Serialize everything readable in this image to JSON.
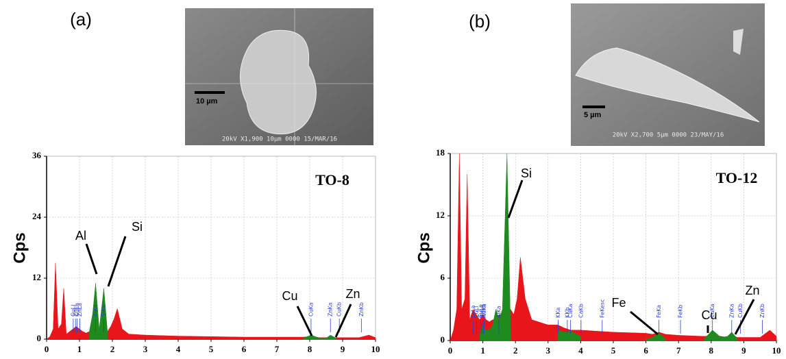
{
  "chart_data": [
    {
      "type": "area",
      "panel": "(a)",
      "title": "TO-8",
      "y_label": "Cps",
      "image": {
        "scale_bar": "10 µm",
        "info": "20kV  X1,900  10µm 0000 15/MAR/16"
      },
      "xlim": [
        0,
        10
      ],
      "ylim": [
        0,
        36
      ],
      "xticks": [
        0,
        1,
        2,
        3,
        4,
        5,
        6,
        7,
        8,
        9,
        10
      ],
      "yticks": [
        0,
        12,
        24,
        36
      ],
      "grid": true,
      "x": [
        0,
        0.1,
        0.2,
        0.27,
        0.35,
        0.45,
        0.52,
        0.6,
        0.7,
        0.8,
        0.9,
        1.0,
        1.1,
        1.2,
        1.3,
        1.4,
        1.49,
        1.6,
        1.74,
        1.85,
        1.95,
        2.05,
        2.15,
        2.3,
        2.5,
        3.0,
        4.0,
        5.0,
        6.0,
        7.0,
        7.8,
        8.04,
        8.3,
        8.5,
        8.63,
        8.8,
        9.0,
        9.5,
        9.8,
        10.0
      ],
      "series": [
        {
          "color": "#e8161b",
          "values": [
            0,
            0.5,
            2,
            15,
            2,
            3,
            10,
            1,
            1.5,
            2,
            2.5,
            2,
            1.5,
            1.2,
            1.5,
            3,
            3,
            2,
            2,
            1.5,
            2.5,
            4,
            6,
            2,
            1,
            0.8,
            0.6,
            0.5,
            0.4,
            0.4,
            0.4,
            0.5,
            0.3,
            0.3,
            0.4,
            0.3,
            0.3,
            0.3,
            0.8,
            0.3
          ]
        },
        {
          "color": "#1f8a1f",
          "values": [
            null,
            null,
            null,
            null,
            null,
            null,
            null,
            null,
            null,
            null,
            null,
            null,
            null,
            null,
            1.5,
            5,
            11,
            2,
            10,
            1.5,
            null,
            null,
            null,
            null,
            null,
            null,
            null,
            null,
            null,
            null,
            0.2,
            0.8,
            0.2,
            0.2,
            0.8,
            0.2,
            null,
            null,
            null,
            null
          ]
        }
      ],
      "peak_labels": [
        {
          "text": "CuLl",
          "x": 0.81
        },
        {
          "text": "ZnLl",
          "x": 0.88
        },
        {
          "text": "CuLa",
          "x": 0.93
        },
        {
          "text": "ZnLa",
          "x": 1.01
        },
        {
          "text": "AlKa",
          "x": 1.49
        },
        {
          "text": "SiKa",
          "x": 1.74
        },
        {
          "text": "CuKa",
          "x": 8.04
        },
        {
          "text": "ZnKa",
          "x": 8.63
        },
        {
          "text": "CuKb",
          "x": 8.9
        },
        {
          "text": "ZnKb",
          "x": 9.57
        }
      ],
      "callouts": [
        {
          "text": "Al"
        },
        {
          "text": "Si"
        },
        {
          "text": "Cu"
        },
        {
          "text": "Zn"
        }
      ]
    },
    {
      "type": "area",
      "panel": "(b)",
      "title": "TO-12",
      "y_label": "Cps",
      "image": {
        "scale_bar": "5 µm",
        "info": "20kV  X2,700  5µm 0000 23/MAY/16"
      },
      "xlim": [
        0,
        10
      ],
      "ylim": [
        0,
        18
      ],
      "xticks": [
        0,
        1,
        2,
        3,
        4,
        5,
        6,
        7,
        8,
        9,
        10
      ],
      "yticks": [
        0,
        6,
        12,
        18
      ],
      "grid": true,
      "x": [
        0,
        0.1,
        0.2,
        0.28,
        0.35,
        0.45,
        0.52,
        0.6,
        0.7,
        0.8,
        0.9,
        1.0,
        1.1,
        1.2,
        1.3,
        1.4,
        1.5,
        1.6,
        1.74,
        1.85,
        1.95,
        2.05,
        2.15,
        2.3,
        2.5,
        3.0,
        3.3,
        3.5,
        3.7,
        4.0,
        5.0,
        6.0,
        6.2,
        6.4,
        6.6,
        7.0,
        7.8,
        8.04,
        8.3,
        8.5,
        8.63,
        8.8,
        9.0,
        9.5,
        9.8,
        10.0
      ],
      "series": [
        {
          "color": "#e8161b",
          "values": [
            0,
            1,
            3,
            18,
            3,
            4,
            16,
            2,
            3,
            2.5,
            2,
            2.5,
            2,
            1.8,
            2,
            2,
            2.5,
            2.5,
            3,
            3,
            2.5,
            4,
            8,
            4,
            2,
            1.5,
            1.5,
            1.2,
            1,
            1,
            0.8,
            0.7,
            0.6,
            0.8,
            0.6,
            0.5,
            0.4,
            0.5,
            0.4,
            0.3,
            0.5,
            0.3,
            0.3,
            0.3,
            1,
            0.4
          ]
        },
        {
          "color": "#1f8a1f",
          "values": [
            null,
            null,
            null,
            null,
            null,
            null,
            null,
            null,
            null,
            null,
            0.5,
            1.5,
            1,
            1,
            1.5,
            3,
            2,
            3,
            18,
            1,
            null,
            null,
            null,
            null,
            null,
            null,
            1,
            0.8,
            0.9,
            0.4,
            null,
            0.1,
            0.3,
            0.7,
            0.2,
            null,
            0.2,
            1,
            0.3,
            0.4,
            0.8,
            0.2,
            null,
            null,
            null,
            null
          ]
        }
      ],
      "peak_labels": [
        {
          "text": "FeLa",
          "x": 0.7
        },
        {
          "text": "CuLl",
          "x": 0.81
        },
        {
          "text": "CuLa",
          "x": 0.93
        },
        {
          "text": "ZnLl",
          "x": 0.98
        },
        {
          "text": "ZnLa",
          "x": 1.01
        },
        {
          "text": "NaKa",
          "x": 1.04
        },
        {
          "text": "AlKa",
          "x": 1.49
        },
        {
          "text": "KKa",
          "x": 3.31
        },
        {
          "text": "KKb",
          "x": 3.59
        },
        {
          "text": "CaKa",
          "x": 3.69
        },
        {
          "text": "CaKb",
          "x": 4.01
        },
        {
          "text": "FeKesc",
          "x": 4.66
        },
        {
          "text": "FeKa",
          "x": 6.4
        },
        {
          "text": "FeKb",
          "x": 7.06
        },
        {
          "text": "CuKa",
          "x": 8.04
        },
        {
          "text": "ZnKa",
          "x": 8.63
        },
        {
          "text": "CuKb",
          "x": 8.9
        },
        {
          "text": "ZnKb",
          "x": 9.57
        }
      ],
      "callouts": [
        {
          "text": "Si"
        },
        {
          "text": "Fe"
        },
        {
          "text": "Cu"
        },
        {
          "text": "Zn"
        }
      ]
    }
  ]
}
